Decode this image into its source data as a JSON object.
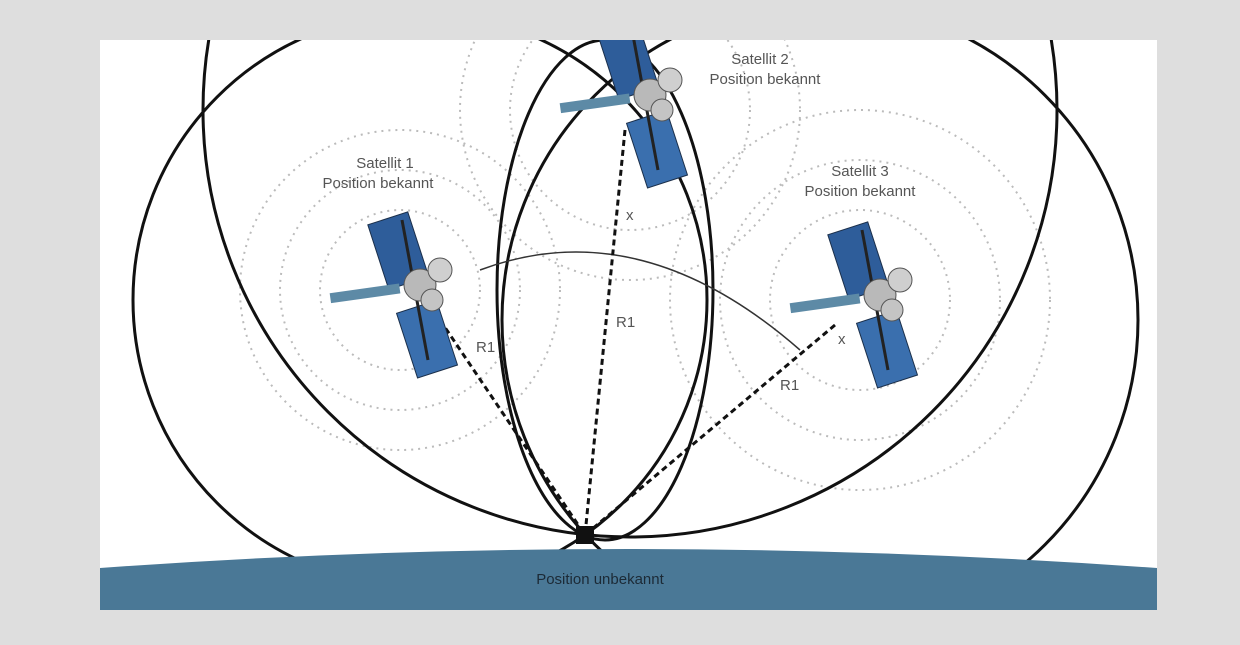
{
  "satellites": [
    {
      "name": "Satellit 1",
      "status": "Position bekannt"
    },
    {
      "name": "Satellit 2",
      "status": "Position bekannt"
    },
    {
      "name": "Satellit 3",
      "status": "Position bekannt"
    }
  ],
  "ranges": [
    "R1",
    "R1",
    "R1"
  ],
  "markers": [
    "x",
    "x"
  ],
  "receiver": {
    "label": "Position unbekannt"
  }
}
